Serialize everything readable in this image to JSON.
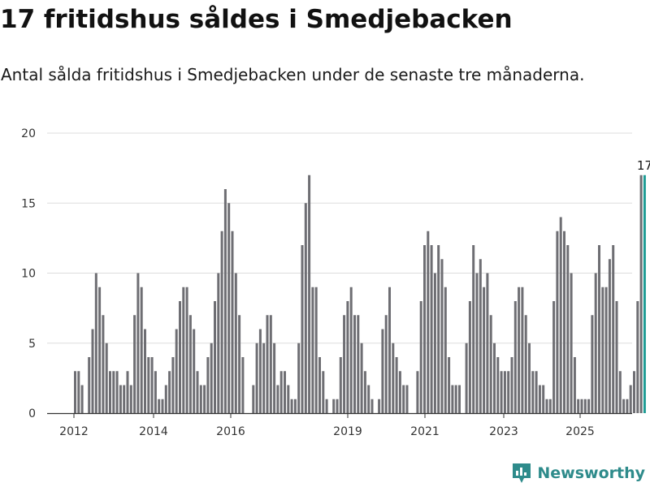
{
  "chart_data": {
    "type": "bar",
    "title": "17 fritidshus såldes i Smedjebacken",
    "subtitle": "Antal sålda fritidshus i Smedjebacken under de senaste tre månaderna.",
    "x_ticks": [
      "2012",
      "2014",
      "2016",
      "2019",
      "2021",
      "2023",
      "2025"
    ],
    "y_ticks": [
      0,
      5,
      10,
      15,
      20
    ],
    "ylim": [
      0,
      20
    ],
    "grid": true,
    "values": [
      3,
      3,
      2,
      0,
      4,
      6,
      10,
      9,
      7,
      5,
      3,
      3,
      3,
      2,
      2,
      3,
      2,
      7,
      10,
      9,
      6,
      4,
      4,
      3,
      1,
      1,
      2,
      3,
      4,
      6,
      8,
      9,
      9,
      7,
      6,
      3,
      2,
      2,
      4,
      5,
      8,
      10,
      13,
      16,
      15,
      13,
      10,
      7,
      4,
      0,
      0,
      2,
      5,
      6,
      5,
      7,
      7,
      5,
      2,
      3,
      3,
      2,
      1,
      1,
      5,
      12,
      15,
      17,
      9,
      9,
      4,
      3,
      1,
      0,
      1,
      1,
      4,
      7,
      8,
      9,
      7,
      7,
      5,
      3,
      2,
      1,
      0,
      1,
      6,
      7,
      9,
      5,
      4,
      3,
      2,
      2,
      0,
      0,
      3,
      8,
      12,
      13,
      12,
      10,
      12,
      11,
      9,
      4,
      2,
      2,
      2,
      0,
      5,
      8,
      12,
      10,
      11,
      9,
      10,
      7,
      5,
      4,
      3,
      3,
      3,
      4,
      8,
      9,
      9,
      7,
      5,
      3,
      3,
      2,
      2,
      1,
      1,
      8,
      13,
      14,
      13,
      12,
      10,
      4,
      1,
      1,
      1,
      1,
      7,
      10,
      12,
      9,
      9,
      11,
      12,
      8,
      3,
      1,
      1,
      2,
      3,
      8,
      17,
      17
    ],
    "highlight_last_value": 17,
    "colors": {
      "bar": "#6e6e73",
      "highlight": "#1f9c95",
      "grid": "#dddddd",
      "axis": "#333333"
    }
  },
  "brand": {
    "name": "Newsworthy",
    "icon": "bar-chart-logo-icon"
  }
}
